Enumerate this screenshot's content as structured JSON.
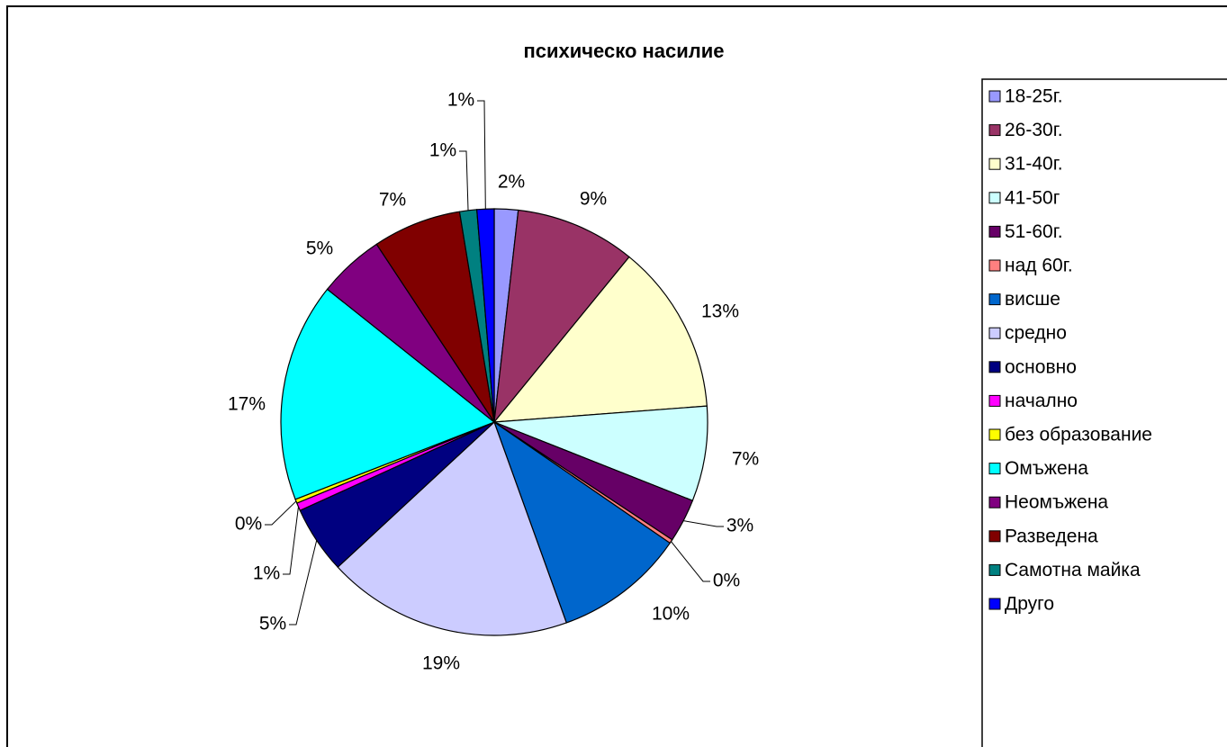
{
  "chart_data": {
    "type": "pie",
    "title": "психическо насилие",
    "categories": [
      "18-25г.",
      "26-30г.",
      "31-40г.",
      "41-50г",
      "51-60г.",
      "над 60г.",
      "висше",
      "средно",
      "основно",
      "начално",
      "без образование",
      "Омъжена",
      "Неомъжена",
      "Разведена",
      "Самотна майка",
      "Друго"
    ],
    "values": [
      1.8,
      9.1,
      12.9,
      7.2,
      3.3,
      0.3,
      9.9,
      18.6,
      5.1,
      0.6,
      0.3,
      16.6,
      5.0,
      6.7,
      1.3,
      1.3
    ],
    "value_labels": [
      "2%",
      "9%",
      "13%",
      "7%",
      "3%",
      "0%",
      "10%",
      "19%",
      "5%",
      "1%",
      "0%",
      "17%",
      "5%",
      "7%",
      "1%",
      "1%"
    ],
    "colors": [
      "#9999ff",
      "#993366",
      "#ffffcc",
      "#ccffff",
      "#660066",
      "#ff8080",
      "#0066cc",
      "#ccccff",
      "#000080",
      "#ff00ff",
      "#ffff00",
      "#00ffff",
      "#800080",
      "#800000",
      "#008080",
      "#0000ff"
    ],
    "legend": "right"
  }
}
